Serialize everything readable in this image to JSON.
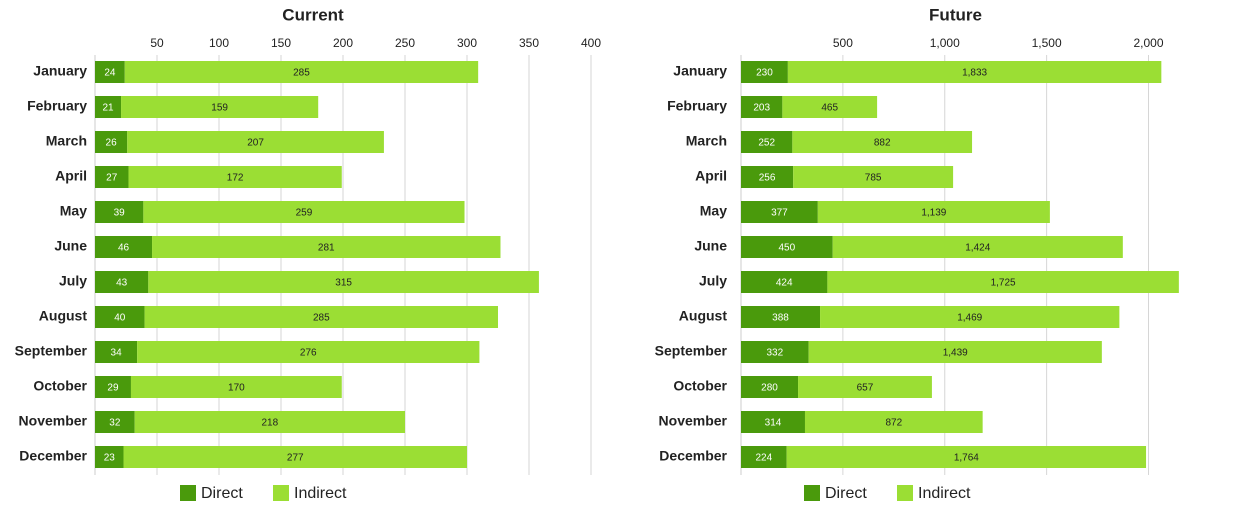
{
  "chart_data": [
    {
      "type": "stacked-bar-horizontal",
      "title": "Current",
      "categories": [
        "January",
        "February",
        "March",
        "April",
        "May",
        "June",
        "July",
        "August",
        "September",
        "October",
        "November",
        "December"
      ],
      "series": [
        {
          "name": "Direct",
          "color": "#4a9a0c",
          "values": [
            24,
            21,
            26,
            27,
            39,
            46,
            43,
            40,
            34,
            29,
            32,
            23
          ]
        },
        {
          "name": "Indirect",
          "color": "#9bde34",
          "values": [
            285,
            159,
            207,
            172,
            259,
            281,
            315,
            285,
            276,
            170,
            218,
            277
          ]
        }
      ],
      "xlim": [
        0,
        400
      ],
      "xticks": [
        50,
        100,
        150,
        200,
        250,
        300,
        350,
        400
      ],
      "grid": true,
      "legend": "bottom"
    },
    {
      "type": "stacked-bar-horizontal",
      "title": "Future",
      "categories": [
        "January",
        "February",
        "March",
        "April",
        "May",
        "June",
        "July",
        "August",
        "September",
        "October",
        "November",
        "December"
      ],
      "series": [
        {
          "name": "Direct",
          "color": "#4a9a0c",
          "values": [
            230,
            203,
            252,
            256,
            377,
            450,
            424,
            388,
            332,
            280,
            314,
            224
          ]
        },
        {
          "name": "Indirect",
          "color": "#9bde34",
          "values": [
            1833,
            465,
            882,
            785,
            1139,
            1424,
            1725,
            1469,
            1439,
            657,
            872,
            1764
          ],
          "value_labels": [
            "1,833",
            "465",
            "882",
            "785",
            "1,139",
            "1,424",
            "1,725",
            "1,469",
            "1,439",
            "657",
            "872",
            "1,764"
          ]
        }
      ],
      "xlim": [
        0,
        2400
      ],
      "xticks": [
        500,
        {
          "value": 1000,
          "label": "1,000"
        },
        {
          "value": 1500,
          "label": "1,500"
        },
        {
          "value": 2000,
          "label": "2,000"
        }
      ],
      "grid": true,
      "legend": "bottom"
    }
  ]
}
